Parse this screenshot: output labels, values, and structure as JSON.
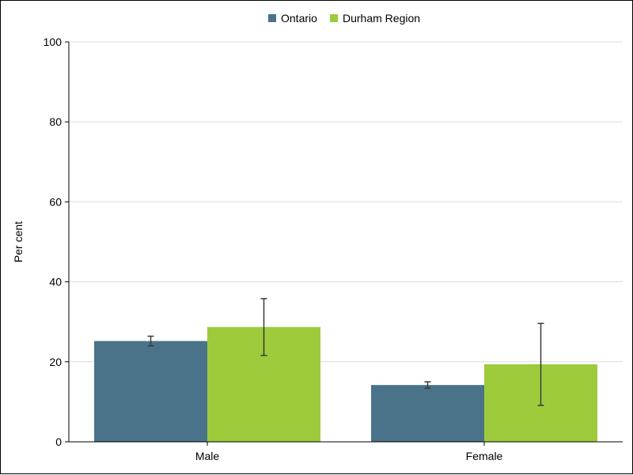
{
  "chart_data": {
    "type": "bar",
    "ylabel": "Per cent",
    "ylim": [
      0,
      100
    ],
    "yticks": [
      0,
      20,
      40,
      60,
      80,
      100
    ],
    "grid": true,
    "legend_position": "top-center",
    "categories": [
      "Male",
      "Female"
    ],
    "series": [
      {
        "name": "Ontario",
        "color": "#4a7389",
        "values": [
          25.2,
          14.2
        ],
        "ci_low": [
          24.0,
          13.4
        ],
        "ci_high": [
          26.4,
          15.0
        ]
      },
      {
        "name": "Durham Region",
        "color": "#9ecb3c",
        "values": [
          28.7,
          19.4
        ],
        "ci_low": [
          21.6,
          9.1
        ],
        "ci_high": [
          35.8,
          29.6
        ]
      }
    ]
  }
}
